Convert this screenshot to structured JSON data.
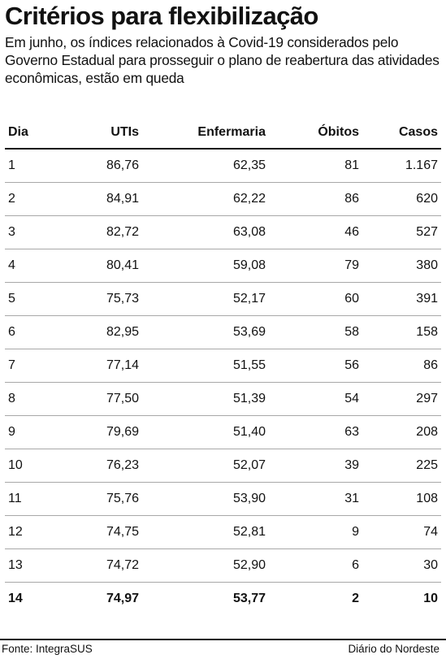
{
  "header": {
    "title": "Critérios para flexibilização",
    "subtitle": "Em junho, os índices relacionados à Covid-19 considerados pelo Governo Estadual para prosseguir o plano de reabertura das atividades econômicas, estão em queda"
  },
  "table": {
    "columns": [
      "Dia",
      "UTIs",
      "Enfermaria",
      "Óbitos",
      "Casos"
    ],
    "rows": [
      [
        "1",
        "86,76",
        "62,35",
        "81",
        "1.167"
      ],
      [
        "2",
        "84,91",
        "62,22",
        "86",
        "620"
      ],
      [
        "3",
        "82,72",
        "63,08",
        "46",
        "527"
      ],
      [
        "4",
        "80,41",
        "59,08",
        "79",
        "380"
      ],
      [
        "5",
        "75,73",
        "52,17",
        "60",
        "391"
      ],
      [
        "6",
        "82,95",
        "53,69",
        "58",
        "158"
      ],
      [
        "7",
        "77,14",
        "51,55",
        "56",
        "86"
      ],
      [
        "8",
        "77,50",
        "51,39",
        "54",
        "297"
      ],
      [
        "9",
        "79,69",
        "51,40",
        "63",
        "208"
      ],
      [
        "10",
        "76,23",
        "52,07",
        "39",
        "225"
      ],
      [
        "11",
        "75,76",
        "53,90",
        "31",
        "108"
      ],
      [
        "12",
        "74,75",
        "52,81",
        "9",
        "74"
      ],
      [
        "13",
        "74,72",
        "52,90",
        "6",
        "30"
      ],
      [
        "14",
        "74,97",
        "53,77",
        "2",
        "10"
      ]
    ]
  },
  "footer": {
    "source": "Fonte: IntegraSUS",
    "brand": "Diário do Nordeste"
  }
}
